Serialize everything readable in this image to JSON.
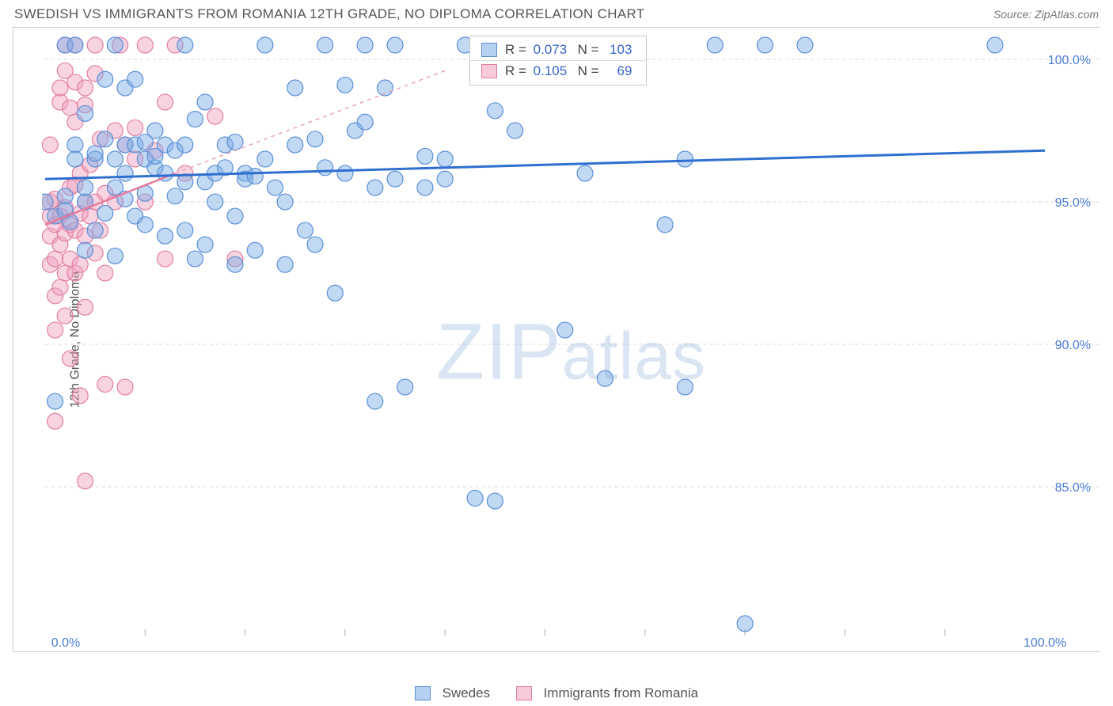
{
  "header": {
    "title": "SWEDISH VS IMMIGRANTS FROM ROMANIA 12TH GRADE, NO DIPLOMA CORRELATION CHART",
    "source": "Source: ZipAtlas.com"
  },
  "ylabel": "12th Grade, No Diploma",
  "watermark": {
    "z": "Z",
    "i": "I",
    "p": "P",
    "rest": "atlas"
  },
  "chart": {
    "type": "scatter",
    "xlim": [
      0,
      100
    ],
    "ylim": [
      80,
      101
    ],
    "ytick_labels": [
      "100.0%",
      "95.0%",
      "90.0%",
      "85.0%"
    ],
    "ytick_values": [
      100,
      95,
      90,
      85
    ],
    "xtick_labels": [
      "0.0%",
      "100.0%"
    ],
    "xtick_values": [
      0,
      100
    ],
    "xtick_minor": [
      10,
      20,
      30,
      40,
      50,
      60,
      70,
      80,
      90
    ],
    "grid_color": "#d8d8d8",
    "background_color": "#ffffff",
    "marker_radius": 10,
    "series": {
      "blue": {
        "label": "Swedes",
        "color_fill": "rgba(120,170,230,0.45)",
        "color_stroke": "#5b8fd6",
        "R": "0.073",
        "N": "103",
        "trend": {
          "x1": 0,
          "y1": 95.8,
          "x2": 100,
          "y2": 96.8,
          "color": "#2f6fd0",
          "width": 3
        },
        "points": [
          [
            0,
            95.0
          ],
          [
            1,
            94.5
          ],
          [
            1,
            88.0
          ],
          [
            2,
            95.2
          ],
          [
            2,
            94.7
          ],
          [
            2.5,
            94.3
          ],
          [
            2,
            100.5
          ],
          [
            3,
            97.0
          ],
          [
            3,
            96.5
          ],
          [
            3,
            100.5
          ],
          [
            4,
            95.0
          ],
          [
            4,
            93.3
          ],
          [
            4,
            95.5
          ],
          [
            4,
            98.1
          ],
          [
            5,
            96.5
          ],
          [
            5,
            94.0
          ],
          [
            5,
            96.7
          ],
          [
            6,
            97.2
          ],
          [
            6,
            94.6
          ],
          [
            6,
            99.3
          ],
          [
            7,
            96.5
          ],
          [
            7,
            95.5
          ],
          [
            7,
            93.1
          ],
          [
            7,
            100.5
          ],
          [
            8,
            99.0
          ],
          [
            8,
            96.0
          ],
          [
            8,
            95.1
          ],
          [
            8,
            97.0
          ],
          [
            9,
            97.0
          ],
          [
            9,
            94.5
          ],
          [
            9,
            99.3
          ],
          [
            10,
            97.1
          ],
          [
            10,
            95.3
          ],
          [
            10,
            96.5
          ],
          [
            10,
            94.2
          ],
          [
            11,
            97.5
          ],
          [
            11,
            96.2
          ],
          [
            11,
            96.6
          ],
          [
            12,
            93.8
          ],
          [
            12,
            96.0
          ],
          [
            12,
            97.0
          ],
          [
            13,
            96.8
          ],
          [
            13,
            95.2
          ],
          [
            14,
            95.7
          ],
          [
            14,
            97.0
          ],
          [
            14,
            94.0
          ],
          [
            14,
            100.5
          ],
          [
            15,
            93.0
          ],
          [
            15,
            97.9
          ],
          [
            16,
            95.7
          ],
          [
            16,
            98.5
          ],
          [
            16,
            93.5
          ],
          [
            17,
            96.0
          ],
          [
            17,
            95.0
          ],
          [
            18,
            97.0
          ],
          [
            18,
            96.2
          ],
          [
            19,
            97.1
          ],
          [
            19,
            94.5
          ],
          [
            19,
            92.8
          ],
          [
            20,
            96.0
          ],
          [
            20,
            95.8
          ],
          [
            21,
            95.9
          ],
          [
            21,
            93.3
          ],
          [
            22,
            100.5
          ],
          [
            22,
            96.5
          ],
          [
            23,
            95.5
          ],
          [
            24,
            95.0
          ],
          [
            24,
            92.8
          ],
          [
            25,
            97.0
          ],
          [
            25,
            99.0
          ],
          [
            26,
            94.0
          ],
          [
            27,
            97.2
          ],
          [
            27,
            93.5
          ],
          [
            28,
            96.2
          ],
          [
            28,
            100.5
          ],
          [
            29,
            91.8
          ],
          [
            30,
            99.1
          ],
          [
            30,
            96.0
          ],
          [
            31,
            97.5
          ],
          [
            32,
            97.8
          ],
          [
            32,
            100.5
          ],
          [
            33,
            95.5
          ],
          [
            33,
            88.0
          ],
          [
            34,
            99.0
          ],
          [
            35,
            95.8
          ],
          [
            35,
            100.5
          ],
          [
            36,
            88.5
          ],
          [
            38,
            96.6
          ],
          [
            38,
            95.5
          ],
          [
            40,
            95.8
          ],
          [
            40,
            96.5
          ],
          [
            42,
            100.5
          ],
          [
            43,
            84.6
          ],
          [
            45,
            84.5
          ],
          [
            45,
            98.2
          ],
          [
            47,
            97.5
          ],
          [
            50,
            100.5
          ],
          [
            52,
            90.5
          ],
          [
            54,
            96.0
          ],
          [
            56,
            88.8
          ],
          [
            58,
            100.5
          ],
          [
            62,
            94.2
          ],
          [
            64,
            96.5
          ],
          [
            64,
            88.5
          ],
          [
            67,
            100.5
          ],
          [
            70,
            80.2
          ],
          [
            72,
            100.5
          ],
          [
            76,
            100.5
          ],
          [
            95,
            100.5
          ]
        ]
      },
      "pink": {
        "label": "Immigrants from Romania",
        "color_fill": "rgba(240,160,190,0.45)",
        "color_stroke": "#e27fa0",
        "R": "0.105",
        "N": "69",
        "trend_solid": {
          "x1": 0,
          "y1": 94.2,
          "x2": 13,
          "y2": 96.0,
          "color": "#e77a9b",
          "width": 2.5
        },
        "trend_dash": {
          "x1": 13,
          "y1": 96.0,
          "x2": 40,
          "y2": 99.6,
          "color": "#e8a3b6",
          "width": 1.5
        },
        "points": [
          [
            0.5,
            94.5
          ],
          [
            0.5,
            95.0
          ],
          [
            0.5,
            93.8
          ],
          [
            0.5,
            92.8
          ],
          [
            0.5,
            97.0
          ],
          [
            1,
            94.2
          ],
          [
            1,
            95.1
          ],
          [
            1,
            93.0
          ],
          [
            1,
            91.7
          ],
          [
            1,
            90.5
          ],
          [
            1,
            87.3
          ],
          [
            1.5,
            94.5
          ],
          [
            1.5,
            93.5
          ],
          [
            1.5,
            92.0
          ],
          [
            1.5,
            98.5
          ],
          [
            1.5,
            99.0
          ],
          [
            2,
            94.8
          ],
          [
            2,
            93.9
          ],
          [
            2,
            92.5
          ],
          [
            2,
            91.0
          ],
          [
            2,
            99.6
          ],
          [
            2,
            100.5
          ],
          [
            2.5,
            94.2
          ],
          [
            2.5,
            95.5
          ],
          [
            2.5,
            98.3
          ],
          [
            2.5,
            93.0
          ],
          [
            2.5,
            89.5
          ],
          [
            3,
            95.6
          ],
          [
            3,
            94.0
          ],
          [
            3,
            92.5
          ],
          [
            3,
            97.8
          ],
          [
            3,
            99.2
          ],
          [
            3,
            100.5
          ],
          [
            3.5,
            94.6
          ],
          [
            3.5,
            96.0
          ],
          [
            3.5,
            88.2
          ],
          [
            3.5,
            92.8
          ],
          [
            4,
            95.0
          ],
          [
            4,
            93.8
          ],
          [
            4,
            98.4
          ],
          [
            4,
            99.0
          ],
          [
            4,
            91.3
          ],
          [
            4,
            85.2
          ],
          [
            4.5,
            94.5
          ],
          [
            4.5,
            96.3
          ],
          [
            5,
            95.0
          ],
          [
            5,
            93.2
          ],
          [
            5,
            99.5
          ],
          [
            5,
            100.5
          ],
          [
            5.5,
            94.0
          ],
          [
            5.5,
            97.2
          ],
          [
            6,
            95.3
          ],
          [
            6,
            88.6
          ],
          [
            6,
            92.5
          ],
          [
            7,
            95.0
          ],
          [
            7,
            97.5
          ],
          [
            7.5,
            100.5
          ],
          [
            8,
            97.0
          ],
          [
            8,
            88.5
          ],
          [
            9,
            96.5
          ],
          [
            9,
            97.6
          ],
          [
            10,
            95.0
          ],
          [
            10,
            100.5
          ],
          [
            11,
            96.8
          ],
          [
            12,
            98.5
          ],
          [
            12,
            93.0
          ],
          [
            13,
            100.5
          ],
          [
            14,
            96.0
          ],
          [
            17,
            98.0
          ],
          [
            19,
            93.0
          ]
        ]
      }
    }
  },
  "legend_bottom": {
    "items": [
      {
        "key": "blue",
        "label": "Swedes"
      },
      {
        "key": "pink",
        "label": "Immigrants from Romania"
      }
    ]
  }
}
